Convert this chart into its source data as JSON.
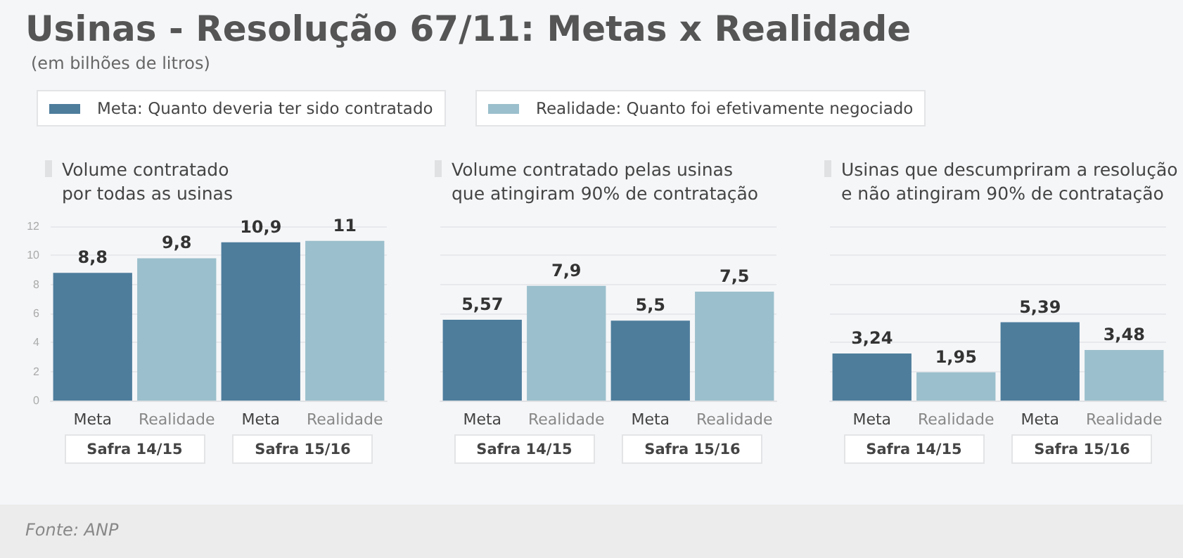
{
  "chart_data": [
    {
      "type": "other",
      "title": "Usinas - Resolução 67/11: Metas x Realidade",
      "subtitle": "(em bilhões de litros)",
      "annotations": [
        "Meta: Quanto deveria ter sido contratado",
        "Realidade: Quanto foi efetivamente negociado",
        "Fonte: ANP"
      ]
    },
    {
      "type": "bar",
      "title": "Volume contratado\npor todas as usinas",
      "categories": [
        "Meta",
        "Realidade",
        "Meta",
        "Realidade"
      ],
      "values": [
        8.8,
        9.8,
        10.9,
        11
      ],
      "value_labels": [
        "8,8",
        "9,8",
        "10,9",
        "11"
      ],
      "colors": [
        "#4e7d9c",
        "#9bbfcc",
        "#4e7d9c",
        "#9bbfcc"
      ],
      "ylim": [
        0,
        12
      ],
      "yticks": [
        0,
        2,
        4,
        6,
        8,
        10,
        12
      ],
      "grid": "y",
      "annotations": [
        "Safra 14/15",
        "Safra 15/16"
      ]
    },
    {
      "type": "bar",
      "title": "Volume contratado pelas usinas\nque atingiram 90% de contratação",
      "categories": [
        "Meta",
        "Realidade",
        "Meta",
        "Realidade"
      ],
      "values": [
        5.57,
        7.9,
        5.5,
        7.5
      ],
      "value_labels": [
        "5,57",
        "7,9",
        "5,5",
        "7,5"
      ],
      "colors": [
        "#4e7d9c",
        "#9bbfcc",
        "#4e7d9c",
        "#9bbfcc"
      ],
      "ylim": [
        0,
        12
      ],
      "yticks": [
        0,
        2,
        4,
        6,
        8,
        10,
        12
      ],
      "grid": "y",
      "tick_labels": "x",
      "annotations": [
        "Safra 14/15",
        "Safra 15/16"
      ]
    },
    {
      "type": "bar",
      "title": "Usinas que descumpriram a resolução\ne não atingiram 90% de contratação",
      "categories": [
        "Meta",
        "Realidade",
        "Meta",
        "Realidade"
      ],
      "values": [
        3.24,
        1.95,
        5.39,
        3.48
      ],
      "value_labels": [
        "3,24",
        "1,95",
        "5,39",
        "3,48"
      ],
      "colors": [
        "#4e7d9c",
        "#9bbfcc",
        "#4e7d9c",
        "#9bbfcc"
      ],
      "ylim": [
        0,
        12
      ],
      "yticks": [
        0,
        2,
        4,
        6,
        8,
        10,
        12
      ],
      "grid": "y",
      "tick_labels": "x",
      "annotations": [
        "Safra 14/15",
        "Safra 15/16"
      ]
    }
  ]
}
